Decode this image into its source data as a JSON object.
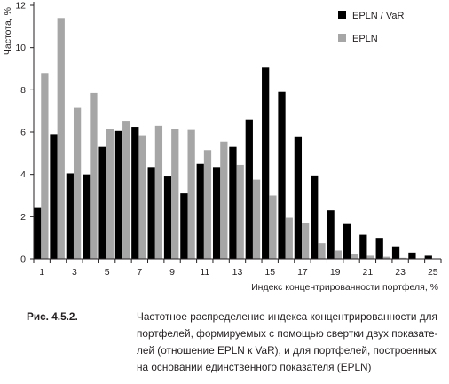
{
  "chart_data": {
    "type": "bar",
    "title": "",
    "xlabel": "Индекс концентрированности портфеля, %",
    "ylabel": "Частота, %",
    "categories": [
      1,
      2,
      3,
      4,
      5,
      6,
      7,
      8,
      9,
      10,
      11,
      12,
      13,
      14,
      15,
      16,
      17,
      18,
      19,
      20,
      21,
      22,
      23,
      24,
      25
    ],
    "x_tick_labels": [
      "1",
      "3",
      "5",
      "7",
      "9",
      "11",
      "13",
      "15",
      "17",
      "19",
      "21",
      "23",
      "25"
    ],
    "y_ticks": [
      0,
      2,
      4,
      6,
      8,
      10,
      12
    ],
    "ylim": [
      0,
      12
    ],
    "grid": false,
    "legend_position": "top-right",
    "series": [
      {
        "name": "EPLN / VaR",
        "color": "#000000",
        "values": [
          2.45,
          5.9,
          4.05,
          4.0,
          5.3,
          6.05,
          6.25,
          4.35,
          3.9,
          3.1,
          4.5,
          4.35,
          5.3,
          6.6,
          9.05,
          7.9,
          5.8,
          3.95,
          2.3,
          1.65,
          1.15,
          1.0,
          0.6,
          0.3,
          0.15
        ]
      },
      {
        "name": "EPLN",
        "color": "#a6a6a6",
        "values": [
          8.8,
          11.4,
          7.15,
          7.85,
          6.15,
          6.5,
          5.85,
          6.3,
          6.15,
          6.1,
          5.15,
          5.55,
          4.45,
          3.75,
          3.0,
          1.95,
          1.7,
          0.75,
          0.4,
          0.25,
          0.15,
          0.1,
          0.05,
          0.0,
          0.0
        ]
      }
    ]
  },
  "caption": {
    "label": "Рис. 4.5.2.",
    "text": "Частотное распределение индекса концентрированности для\nпортфелей, формируемых с помощью свертки двух показате-\nлей (отношение EPLN к VaR), и для портфелей, построенных\nна основании единственного показателя (EPLN)"
  }
}
